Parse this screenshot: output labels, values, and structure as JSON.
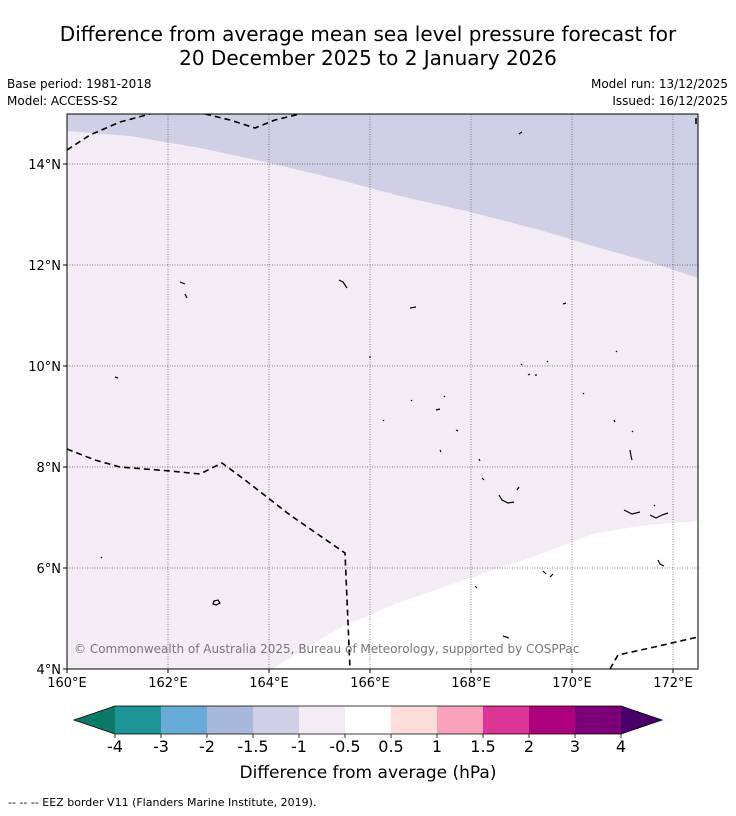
{
  "title": {
    "line1": "Difference from average mean sea level pressure forecast for",
    "line2": "20 December 2025 to 2 January 2026"
  },
  "meta": {
    "base_period": "Base period: 1981-2018",
    "model": "Model: ACCESS-S2",
    "model_run": "Model run: 13/12/2025",
    "issued": "Issued: 16/12/2025"
  },
  "map": {
    "lat_labels": [
      "14°N",
      "12°N",
      "10°N",
      "8°N",
      "6°N",
      "4°N"
    ],
    "lon_labels": [
      "160°E",
      "162°E",
      "164°E",
      "166°E",
      "168°E",
      "170°E",
      "172°E"
    ],
    "copyright": "© Commonwealth of Australia 2025, Bureau of Meteorology, supported by COSPPac"
  },
  "legend": {
    "tick_labels": [
      "-4",
      "-3",
      "-2",
      "-1.5",
      "-1",
      "-0.5",
      "0.5",
      "1",
      "1.5",
      "2",
      "3",
      "4"
    ],
    "title": "Difference from average (hPa)",
    "colors": [
      "#0a7a66",
      "#1f9598",
      "#67acd6",
      "#a8b8d8",
      "#cfcfe6",
      "#f3ecf5",
      "#ffffff",
      "#fddcdc",
      "#f7a2ba",
      "#dd3497",
      "#ae017e",
      "#7a0177",
      "#49006a"
    ]
  },
  "footer": {
    "eez_note": "--  --  -- EEZ border V11 (Flanders Marine Institute, 2019)."
  }
}
